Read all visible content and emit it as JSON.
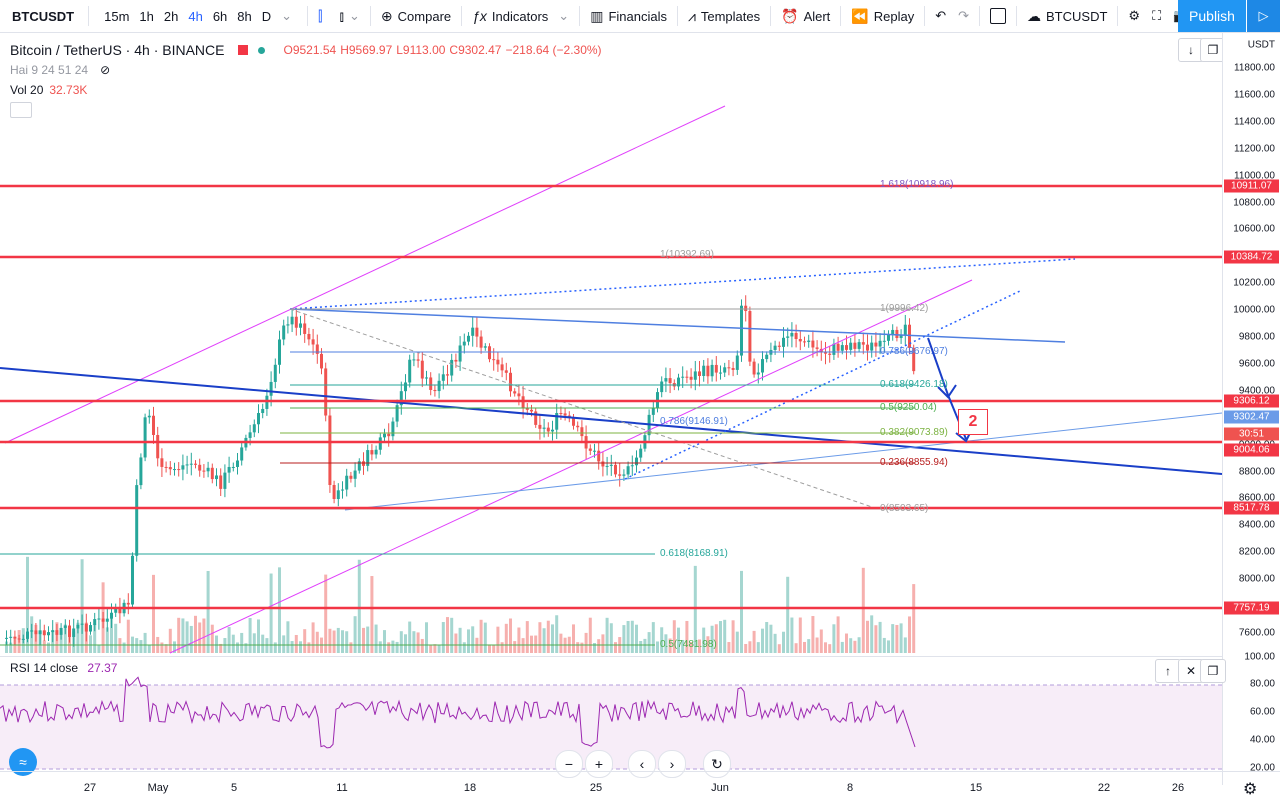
{
  "toolbar": {
    "symbol": "BTCUSDT",
    "timeframes": [
      "15m",
      "1h",
      "2h",
      "4h",
      "6h",
      "8h",
      "D"
    ],
    "active_timeframe": "4h",
    "compare": "Compare",
    "indicators": "Indicators",
    "financials": "Financials",
    "templates": "Templates",
    "alert": "Alert",
    "replay": "Replay",
    "symbol2": "BTCUSDT",
    "publish": "Publish"
  },
  "legend": {
    "pair": "Bitcoin / TetherUS · 4h · BINANCE",
    "open": "O9521.54",
    "high": "H9569.97",
    "low": "L9113.00",
    "close": "C9302.47",
    "change": "−218.64 (−2.30%)",
    "hai": "Hai 9 24 51 24",
    "vol_label": "Vol 20",
    "vol_value": "32.73K"
  },
  "axis": {
    "currency": "USDT",
    "ticks": [
      "11800.00",
      "11600.00",
      "11400.00",
      "11200.00",
      "11000.00",
      "10800.00",
      "10600.00",
      "10400.00",
      "10200.00",
      "10000.00",
      "9800.00",
      "9600.00",
      "9400.00",
      "9200.00",
      "9000.00",
      "8800.00",
      "8600.00",
      "8400.00",
      "8200.00",
      "8000.00",
      "7800.00",
      "7600.00",
      "100.00"
    ],
    "labels": {
      "l10911": "10911.07",
      "l10384": "10384.72",
      "l9306": "9306.12",
      "l9302": "9302.47",
      "countdown": "30:51",
      "l9004": "9004.06",
      "l8517": "8517.78",
      "l7757": "7757.19"
    },
    "rsi_ticks": [
      "80.00",
      "60.00",
      "40.00",
      "20.00"
    ]
  },
  "fib": {
    "f1618": "1.618(10918.96)",
    "f1a": "1(10392.69)",
    "f1b": "1(9996.42)",
    "f786a": "0.786(9676.97)",
    "f618a": "0.618(9426.18)",
    "f5a": "0.5(9250.04)",
    "f786b": "0.786(9146.91)",
    "f382": "0.382(9073.89)",
    "f236": "0.236(8855.94)",
    "f0": "0(8503.65)",
    "f618b": "0.618(8168.91)",
    "f5b": "0.5(7481.98)"
  },
  "annotation": "2",
  "rsi": {
    "label": "RSI 14 close",
    "value": "27.37"
  },
  "time_labels": [
    "27",
    "May",
    "5",
    "11",
    "18",
    "25",
    "Jun",
    "8",
    "15",
    "22",
    "26"
  ],
  "colors": {
    "red": "#f23645",
    "blue": "#2962ff",
    "magenta": "#e040fb",
    "up": "#26a69a",
    "down": "#ef5350"
  }
}
